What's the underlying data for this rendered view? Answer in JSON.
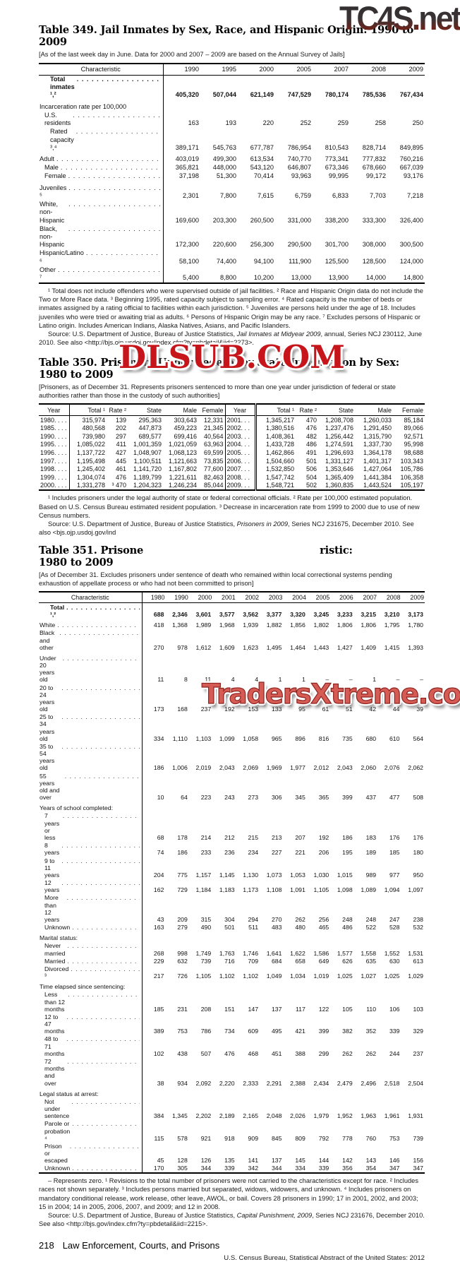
{
  "watermarks": {
    "top": "TC4S.net",
    "middle": "DLSUB.COM",
    "bottom": "TradersXtreme.com"
  },
  "table349": {
    "title": "Table 349. Jail Inmates by Sex, Race, and Hispanic Origin: 1990 to 2009",
    "note": "[As of the last week day in June. Data for 2000 and 2007 – 2009 are based on the Annual Survey of Jails]",
    "columns": [
      "Characteristic",
      "1990",
      "1995",
      "2000",
      "2005",
      "2007",
      "2008",
      "2009"
    ],
    "rows": [
      {
        "label": "Total inmates ¹,²",
        "indent": 2,
        "dots": true,
        "bold": true,
        "cells": [
          "405,320",
          "507,044",
          "621,149",
          "747,529",
          "780,174",
          "785,536",
          "767,434"
        ]
      },
      {
        "label": "Incarceration rate per 100,000",
        "group": true,
        "cells": [
          "",
          "",
          "",
          "",
          "",
          "",
          ""
        ]
      },
      {
        "label": "U.S. residents",
        "indent": 1,
        "dots": true,
        "cells": [
          "163",
          "193",
          "220",
          "252",
          "259",
          "258",
          "250"
        ]
      },
      {
        "label": "Rated capacity ³,⁴",
        "indent": 2,
        "dots": true,
        "cells": [
          "389,171",
          "545,763",
          "677,787",
          "786,954",
          "810,543",
          "828,714",
          "849,895"
        ]
      },
      {
        "label": "Adult",
        "group": true,
        "dots": true,
        "cells": [
          "403,019",
          "499,300",
          "613,534",
          "740,770",
          "773,341",
          "777,832",
          "760,216"
        ]
      },
      {
        "label": "Male",
        "indent": 1,
        "dots": true,
        "cells": [
          "365,821",
          "448,000",
          "543,120",
          "646,807",
          "673,346",
          "678,660",
          "667,039"
        ]
      },
      {
        "label": "Female",
        "indent": 1,
        "dots": true,
        "cells": [
          "37,198",
          "51,300",
          "70,414",
          "93,963",
          "99,995",
          "99,172",
          "93,176"
        ]
      },
      {
        "label": "Juveniles ⁵",
        "group": true,
        "dots": true,
        "cells": [
          "2,301",
          "7,800",
          "7,615",
          "6,759",
          "6,833",
          "7,703",
          "7,218"
        ]
      },
      {
        "label": "White, non-Hispanic",
        "dots": true,
        "cells": [
          "169,600",
          "203,300",
          "260,500",
          "331,000",
          "338,200",
          "333,300",
          "326,400"
        ]
      },
      {
        "label": "Black, non-Hispanic",
        "dots": true,
        "cells": [
          "172,300",
          "220,600",
          "256,300",
          "290,500",
          "301,700",
          "308,000",
          "300,500"
        ]
      },
      {
        "label": "Hispanic/Latino ⁶",
        "dots": true,
        "cells": [
          "58,100",
          "74,400",
          "94,100",
          "111,900",
          "125,500",
          "128,500",
          "124,000"
        ]
      },
      {
        "label": "Other ⁷",
        "dots": true,
        "cells": [
          "5,400",
          "8,800",
          "10,200",
          "13,000",
          "13,900",
          "14,000",
          "14,800"
        ]
      }
    ],
    "footnotes": [
      {
        "parts": [
          "¹ Total does not include offenders who were supervised outside of jail facilities. ² Race and Hispanic Origin data do not include the Two or More Race data. ³ Beginning 1995, rated capacity subject to sampling error. ⁴ Rated capacity is the number of beds or inmates assigned by a rating official to facilities within each jurisdiction. ⁵ Juveniles are persons held under the age of 18. Includes juveniles who were tried or awaiting trial as adults. ⁶ Persons of Hispanic Origin may be any race. ⁷ Excludes persons of Hispanic or Latino origin. Includes American Indians, Alaska Natives, Asians, and Pacific Islanders."
        ]
      },
      {
        "parts": [
          "Source: U.S. Department of Justice, Bureau of Justice Statistics, ",
          {
            "i": "Jail Inmates at Midyear 2009"
          },
          ", annual, Series NCJ 230112, June 2010. See also <http://bjs.ojp.usdoj.gov/index.cfm?ty=pbdetail&iid=2273>."
        ]
      }
    ]
  },
  "table350": {
    "title": "Table 350. Prisoners Under Federal or State Jurisdiction by Sex: 1980 to 2009",
    "note": "[Prisoners, as of December 31. Represents prisoners sentenced to more than one year under jurisdiction of federal or state authorities rather than those in the custody of such authorities]",
    "columns": [
      "Year",
      "Total ¹",
      "Rate ²",
      "State",
      "Male",
      "Female",
      "Year",
      "Total ¹",
      "Rate ²",
      "State",
      "Male",
      "Female"
    ],
    "rows": [
      [
        "1980. . . .",
        "315,974",
        "139",
        "295,363",
        "303,643",
        "12,331",
        "2001. . .",
        "1,345,217",
        "470",
        "1,208,708",
        "1,260,033",
        "85,184"
      ],
      [
        "1985. . . .",
        "480,568",
        "202",
        "447,873",
        "459,223",
        "21,345",
        "2002. . .",
        "1,380,516",
        "476",
        "1,237,476",
        "1,291,450",
        "89,066"
      ],
      [
        "1990. . . .",
        "739,980",
        "297",
        "689,577",
        "699,416",
        "40,564",
        "2003. . .",
        "1,408,361",
        "482",
        "1,256,442",
        "1,315,790",
        "92,571"
      ],
      [
        "1995. . . .",
        "1,085,022",
        "411",
        "1,001,359",
        "1,021,059",
        "63,963",
        "2004. . .",
        "1,433,728",
        "486",
        "1,274,591",
        "1,337,730",
        "95,998"
      ],
      [
        "1996. . . .",
        "1,137,722",
        "427",
        "1,048,907",
        "1,068,123",
        "69,599",
        "2005. . .",
        "1,462,866",
        "491",
        "1,296,693",
        "1,364,178",
        "98,688"
      ],
      [
        "1997. . . .",
        "1,195,498",
        "445",
        "1,100,511",
        "1,121,663",
        "73,835",
        "2006. . .",
        "1,504,660",
        "501",
        "1,331,127",
        "1,401,317",
        "103,343"
      ],
      [
        "1998. . . .",
        "1,245,402",
        "461",
        "1,141,720",
        "1,167,802",
        "77,600",
        "2007. . .",
        "1,532,850",
        "506",
        "1,353,646",
        "1,427,064",
        "105,786"
      ],
      [
        "1999. . . .",
        "1,304,074",
        "476",
        "1,189,799",
        "1,221,611",
        "82,463",
        "2008. . .",
        "1,547,742",
        "504",
        "1,365,409",
        "1,441,384",
        "106,358"
      ],
      [
        "2000. . . .",
        "1,331,278",
        "³ 470",
        "1,204,323",
        "1,246,234",
        "85,044",
        "2009. . .",
        "1,548,721",
        "502",
        "1,360,835",
        "1,443,524",
        "105,197"
      ]
    ],
    "footnotes": [
      {
        "parts": [
          "¹ Includes prisoners under the legal authority of state or federal correctional officials. ² Rate per 100,000 estimated population. Based on U.S. Census Bureau estimated resident population. ³ Decrease in incarceration rate from 1999 to 2000 due to use of new Census numbers."
        ]
      },
      {
        "parts": [
          "Source: U.S. Department of Justice, Bureau of Justice Statistics, ",
          {
            "i": "Prisoners in 2009"
          },
          ", Series NCJ 231675, December 2010. See also <bjs.ojp.usdoj.gov/ind"
        ]
      }
    ]
  },
  "table351": {
    "title_pre": "Table 351. Prisone",
    "title_post": "ristic:",
    "title_line2": "1980 to 2009",
    "note": "[As of December 31. Excludes prisoners under sentence of death who remained within local correctional systems pending exhaustion of appellate process or who had not been committed to prison]",
    "columns": [
      "Characteristic",
      "1980",
      "1990",
      "2000",
      "2001",
      "2002",
      "2003",
      "2004",
      "2005",
      "2006",
      "2007",
      "2008",
      "2009"
    ],
    "rows": [
      {
        "label": "Total ¹,²",
        "indent": 2,
        "dots": true,
        "bold": true,
        "cells": [
          "688",
          "2,346",
          "3,601",
          "3,577",
          "3,562",
          "3,377",
          "3,320",
          "3,245",
          "3,233",
          "3,215",
          "3,210",
          "3,173"
        ]
      },
      {
        "label": "White",
        "group": true,
        "dots": true,
        "cells": [
          "418",
          "1,368",
          "1,989",
          "1,968",
          "1,939",
          "1,882",
          "1,856",
          "1,802",
          "1,806",
          "1,806",
          "1,795",
          "1,780"
        ]
      },
      {
        "label": "Black and other",
        "dots": true,
        "cells": [
          "270",
          "978",
          "1,612",
          "1,609",
          "1,623",
          "1,495",
          "1,464",
          "1,443",
          "1,427",
          "1,409",
          "1,415",
          "1,393"
        ]
      },
      {
        "label": "Under 20 years old",
        "group": true,
        "dots": true,
        "cells": [
          "11",
          "8",
          "11",
          "4",
          "4",
          "1",
          "1",
          "–",
          "–",
          "1",
          "–",
          "–"
        ]
      },
      {
        "label": "20 to 24 years old",
        "dots": true,
        "cells": [
          "173",
          "168",
          "237",
          "192",
          "153",
          "133",
          "95",
          "61",
          "51",
          "42",
          "44",
          "39"
        ]
      },
      {
        "label": "25 to 34 years old",
        "dots": true,
        "cells": [
          "334",
          "1,110",
          "1,103",
          "1,099",
          "1,058",
          "965",
          "896",
          "816",
          "735",
          "680",
          "610",
          "564"
        ]
      },
      {
        "label": "35 to 54 years old",
        "dots": true,
        "cells": [
          "186",
          "1,006",
          "2,019",
          "2,043",
          "2,069",
          "1,969",
          "1,977",
          "2,012",
          "2,043",
          "2,060",
          "2,076",
          "2,062"
        ]
      },
      {
        "label": "55 years old and over",
        "dots": true,
        "cells": [
          "10",
          "64",
          "223",
          "243",
          "273",
          "306",
          "345",
          "365",
          "399",
          "437",
          "477",
          "508"
        ]
      },
      {
        "label": "Years of school completed:",
        "group": true,
        "cells": [
          "",
          "",
          "",
          "",
          "",
          "",
          "",
          "",
          "",
          "",
          "",
          ""
        ]
      },
      {
        "label": "7 years or less",
        "indent": 1,
        "dots": true,
        "cells": [
          "68",
          "178",
          "214",
          "212",
          "215",
          "213",
          "207",
          "192",
          "186",
          "183",
          "176",
          "176"
        ]
      },
      {
        "label": "8 years",
        "indent": 1,
        "dots": true,
        "cells": [
          "74",
          "186",
          "233",
          "236",
          "234",
          "227",
          "221",
          "206",
          "195",
          "189",
          "185",
          "180"
        ]
      },
      {
        "label": "9 to 11 years",
        "indent": 1,
        "dots": true,
        "cells": [
          "204",
          "775",
          "1,157",
          "1,145",
          "1,130",
          "1,073",
          "1,053",
          "1,030",
          "1,015",
          "989",
          "977",
          "950"
        ]
      },
      {
        "label": "12 years",
        "indent": 1,
        "dots": true,
        "cells": [
          "162",
          "729",
          "1,184",
          "1,183",
          "1,173",
          "1,108",
          "1,091",
          "1,105",
          "1,098",
          "1,089",
          "1,094",
          "1,097"
        ]
      },
      {
        "label": "More than 12 years",
        "indent": 1,
        "dots": true,
        "cells": [
          "43",
          "209",
          "315",
          "304",
          "294",
          "270",
          "262",
          "256",
          "248",
          "248",
          "247",
          "238"
        ]
      },
      {
        "label": "Unknown",
        "indent": 1,
        "dots": true,
        "cells": [
          "163",
          "279",
          "490",
          "501",
          "511",
          "483",
          "480",
          "465",
          "486",
          "522",
          "528",
          "532"
        ]
      },
      {
        "label": "Marital status:",
        "group": true,
        "cells": [
          "",
          "",
          "",
          "",
          "",
          "",
          "",
          "",
          "",
          "",
          "",
          ""
        ]
      },
      {
        "label": "Never married",
        "indent": 1,
        "dots": true,
        "cells": [
          "268",
          "998",
          "1,749",
          "1,763",
          "1,746",
          "1,641",
          "1,622",
          "1,586",
          "1,577",
          "1,558",
          "1,552",
          "1,531"
        ]
      },
      {
        "label": "Married",
        "indent": 1,
        "dots": true,
        "cells": [
          "229",
          "632",
          "739",
          "716",
          "709",
          "684",
          "658",
          "649",
          "626",
          "635",
          "630",
          "613"
        ]
      },
      {
        "label": "Divorced ³",
        "indent": 1,
        "dots": true,
        "cells": [
          "217",
          "726",
          "1,105",
          "1,102",
          "1,102",
          "1,049",
          "1,034",
          "1,019",
          "1,025",
          "1,027",
          "1,025",
          "1,029"
        ]
      },
      {
        "label": "Time elapsed since sentencing:",
        "group": true,
        "cells": [
          "",
          "",
          "",
          "",
          "",
          "",
          "",
          "",
          "",
          "",
          "",
          ""
        ]
      },
      {
        "label": "Less than 12 months",
        "indent": 1,
        "dots": true,
        "cells": [
          "185",
          "231",
          "208",
          "151",
          "147",
          "137",
          "117",
          "122",
          "105",
          "110",
          "106",
          "103"
        ]
      },
      {
        "label": "12 to 47 months",
        "indent": 1,
        "dots": true,
        "cells": [
          "389",
          "753",
          "786",
          "734",
          "609",
          "495",
          "421",
          "399",
          "382",
          "352",
          "339",
          "329"
        ]
      },
      {
        "label": "48 to 71 months",
        "indent": 1,
        "dots": true,
        "cells": [
          "102",
          "438",
          "507",
          "476",
          "468",
          "451",
          "388",
          "299",
          "262",
          "262",
          "244",
          "237"
        ]
      },
      {
        "label": "72 months and over",
        "indent": 1,
        "dots": true,
        "cells": [
          "38",
          "934",
          "2,092",
          "2,220",
          "2,333",
          "2,291",
          "2,388",
          "2,434",
          "2,479",
          "2,496",
          "2,518",
          "2,504"
        ]
      },
      {
        "label": "Legal status at arrest:",
        "group": true,
        "cells": [
          "",
          "",
          "",
          "",
          "",
          "",
          "",
          "",
          "",
          "",
          "",
          ""
        ]
      },
      {
        "label": "Not under sentence",
        "indent": 1,
        "dots": true,
        "cells": [
          "384",
          "1,345",
          "2,202",
          "2,189",
          "2,165",
          "2,048",
          "2,026",
          "1,979",
          "1,952",
          "1,963",
          "1,961",
          "1,931"
        ]
      },
      {
        "label": "Parole or probation ⁴",
        "indent": 1,
        "dots": true,
        "cells": [
          "115",
          "578",
          "921",
          "918",
          "909",
          "845",
          "809",
          "792",
          "778",
          "760",
          "753",
          "739"
        ]
      },
      {
        "label": "Prison or escaped",
        "indent": 1,
        "dots": true,
        "cells": [
          "45",
          "128",
          "126",
          "135",
          "141",
          "137",
          "145",
          "144",
          "142",
          "143",
          "146",
          "156"
        ]
      },
      {
        "label": "Unknown",
        "indent": 1,
        "dots": true,
        "cells": [
          "170",
          "305",
          "344",
          "339",
          "342",
          "344",
          "334",
          "339",
          "356",
          "354",
          "347",
          "347"
        ]
      }
    ],
    "footnotes": [
      {
        "parts": [
          "– Represents zero. ¹ Revisions to the total number of prisoners were not carried to the characteristics except for race. ² Includes races not shown separately. ³ Includes persons married but separated, widows, widowers, and unknown. ⁴ Includes prisoners on mandatory conditional release, work release, other leave, AWOL, or bail. Covers 28 prisoners in 1990; 17 in 2001, 2002, and 2003; 15 in 2004; 14 in 2005, 2006, 2007, and 2009; and 12 in 2008."
        ]
      },
      {
        "parts": [
          "Source: U.S. Department of Justice, Bureau of Justice Statistics, ",
          {
            "i": "Capital Punishment, 2009"
          },
          ", Series NCJ 231676, December 2010. See also <http://bjs.gov/index.cfm?ty=pbdetail&iid=2215>."
        ]
      }
    ]
  },
  "footer": {
    "page_number": "218",
    "section": "Law Enforcement, Courts, and Prisons",
    "source_line": "U.S. Census Bureau, Statistical Abstract of the United States: 2012"
  },
  "colors": {
    "watermark_red": "#c6161c",
    "watermark_salmon": "#d45c55",
    "rule_black": "#000000"
  }
}
